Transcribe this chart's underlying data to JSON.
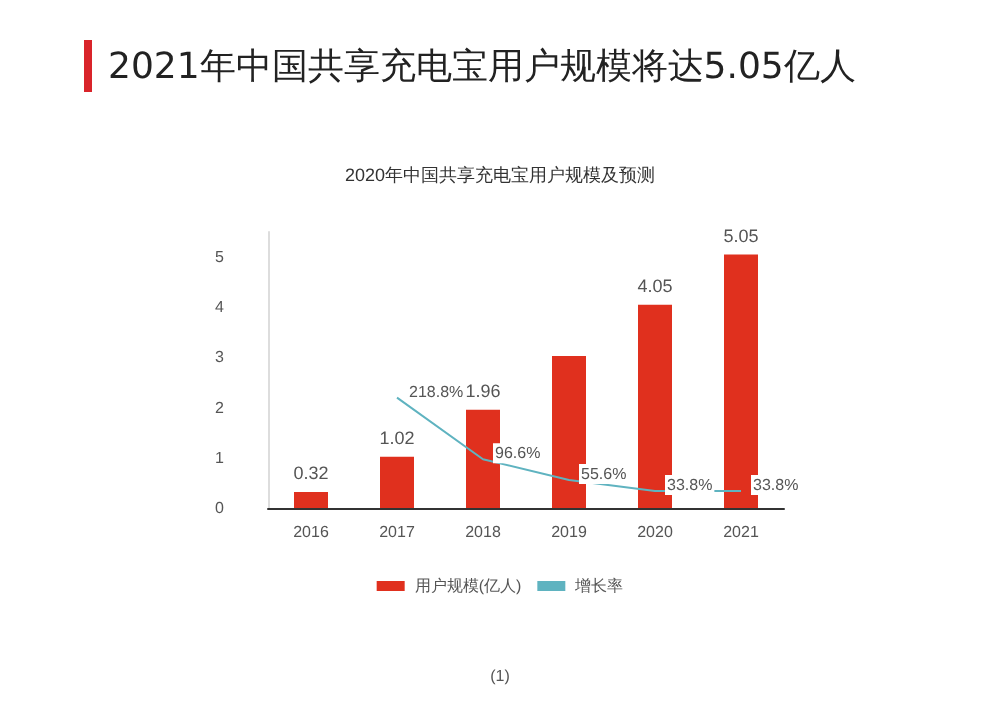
{
  "chart_data": {
    "type": "bar",
    "title": "2021年中国共享充电宝用户规模将达5.05亿人",
    "subtitle": "2020年中国共享充电宝用户规模及预测",
    "categories": [
      "2016",
      "2017",
      "2018",
      "2019",
      "2020",
      "2021"
    ],
    "series": [
      {
        "name": "用户规模(亿人)",
        "color": "#e0301e",
        "values": [
          0.32,
          1.02,
          1.96,
          3.03,
          4.05,
          5.05
        ],
        "value_labels": [
          "0.32",
          "1.02",
          "1.96",
          null,
          "4.05",
          "5.05"
        ]
      },
      {
        "name": "增长率",
        "type": "line",
        "axis": "y2",
        "color": "#5fb3c0",
        "values": [
          null,
          218.8,
          96.6,
          55.6,
          33.8,
          33.8
        ],
        "value_labels": [
          null,
          "218.8%",
          "96.6%",
          "55.6%",
          "33.8%",
          "33.8%"
        ]
      }
    ],
    "ylim": [
      0,
      5.5
    ],
    "yticks": [
      0,
      1,
      2,
      3,
      4,
      5
    ],
    "grid": false,
    "legend": "bottom",
    "marker": "none",
    "line_style": "solid",
    "annotations": [
      "(1)"
    ]
  }
}
